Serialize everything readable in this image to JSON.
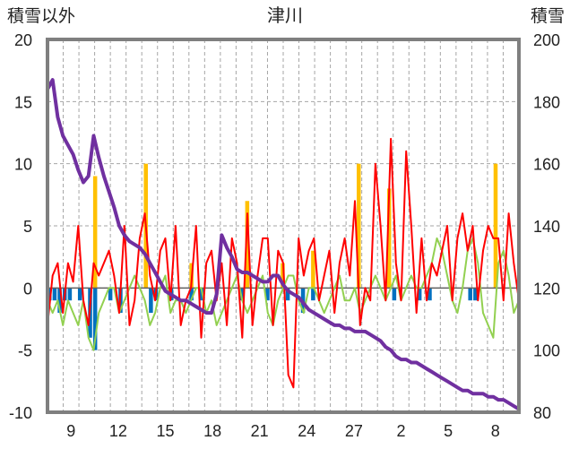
{
  "chart_data": {
    "type": "line",
    "title": "津川",
    "ylabel_left": "積雪以外",
    "ylabel_right": "積雪",
    "ylim_left": [
      -10,
      20
    ],
    "ylim_right": [
      80,
      200
    ],
    "yticks_left": [
      "20",
      "15",
      "10",
      "5",
      "0",
      "-5",
      "-10"
    ],
    "yticks_right": [
      "200",
      "180",
      "160",
      "140",
      "120",
      "100",
      "80"
    ],
    "xticks": [
      "9",
      "12",
      "15",
      "18",
      "21",
      "24",
      "27",
      "2",
      "5",
      "8"
    ],
    "grid": true,
    "x_days": 30,
    "series": [
      {
        "key": "max_temp",
        "axis": "left",
        "color": "#ff0000",
        "values": [
          -3,
          1,
          2,
          -2,
          2,
          0.5,
          5,
          -1,
          -3,
          2,
          1,
          2,
          3,
          1,
          -2,
          5,
          -3,
          -1,
          4,
          6,
          1,
          -1,
          3,
          4,
          -1,
          5,
          -3,
          -1,
          0,
          5,
          -4,
          2,
          3,
          -1,
          2,
          -3,
          4,
          2,
          -4,
          6,
          -3,
          1,
          4,
          4,
          -3,
          3,
          2,
          -7,
          -8,
          4,
          1,
          3,
          4,
          -1,
          1,
          3,
          -2,
          2,
          4,
          1,
          7,
          -3,
          0,
          -1,
          10,
          5,
          -1,
          12,
          2,
          -1,
          11,
          5,
          -2,
          4,
          -1,
          2,
          1,
          3,
          5,
          -1,
          4,
          6,
          3,
          5,
          -1,
          3,
          5,
          4,
          4,
          -1,
          6,
          2,
          -1
        ]
      },
      {
        "key": "min_temp",
        "axis": "left",
        "color": "#92d050",
        "values": [
          -1,
          -2,
          -1,
          -3,
          -1,
          -2,
          -3,
          -1,
          -4,
          -5,
          -2,
          -1,
          0,
          0,
          -2,
          -1,
          0,
          1,
          0,
          -1,
          -3,
          -2,
          0,
          1,
          -2,
          -1,
          -1,
          -2,
          -1,
          0,
          0,
          -2,
          -1,
          -3,
          -2,
          -1,
          0,
          1,
          -1,
          -2,
          -1,
          0,
          1,
          -2,
          -3,
          -1,
          0,
          1,
          1,
          -1,
          -2,
          0,
          0,
          -1,
          -2,
          -1,
          0,
          1,
          -1,
          -1,
          0,
          -2,
          -1,
          0,
          1,
          0,
          -1,
          0,
          1,
          -1,
          0,
          1,
          0,
          0,
          1,
          2,
          4,
          3,
          1,
          -1,
          -2,
          0,
          3,
          4,
          2,
          -2,
          -3,
          -4,
          2,
          3,
          1,
          -2,
          -1
        ]
      },
      {
        "key": "precipitation",
        "axis": "left",
        "color": "#ffc000",
        "values": [
          0,
          0,
          0,
          0,
          0,
          0,
          0,
          0,
          0,
          9,
          0,
          0,
          0,
          0,
          0,
          0,
          0,
          0,
          0,
          10,
          0,
          0,
          0,
          0,
          0,
          0,
          0,
          0,
          2,
          0,
          0,
          0,
          0,
          0,
          0,
          0,
          0,
          0,
          0,
          7,
          0,
          0,
          0,
          0,
          0,
          0,
          2,
          0,
          0,
          0,
          0,
          0,
          3,
          0,
          0,
          0,
          0,
          0,
          0,
          0,
          0,
          10,
          0,
          0,
          0,
          0,
          0,
          8,
          0,
          0,
          0,
          0,
          0,
          0,
          0,
          0,
          0,
          0,
          0,
          0,
          0,
          0,
          0,
          0,
          0,
          0,
          0,
          0,
          10,
          0,
          0,
          0,
          0
        ]
      },
      {
        "key": "snowfall",
        "axis": "left",
        "color": "#0070c0",
        "values": [
          -1,
          -1,
          -2,
          -1,
          -1,
          0,
          -1,
          0,
          -4,
          -5,
          0,
          0,
          -1,
          0,
          -2,
          0,
          0,
          0,
          0,
          0,
          -2,
          -1,
          0,
          0,
          -1,
          0,
          0,
          0,
          -1,
          0,
          -1,
          0,
          0,
          0,
          0,
          0,
          0,
          0,
          -1,
          0,
          0,
          0,
          0,
          -1,
          0,
          0,
          0,
          -1,
          0,
          0,
          -2,
          0,
          -1,
          0,
          0,
          0,
          0,
          0,
          0,
          0,
          0,
          0,
          0,
          0,
          0,
          0,
          0,
          0,
          -1,
          0,
          0,
          0,
          0,
          -1,
          0,
          -1,
          0,
          0,
          0,
          0,
          0,
          0,
          0,
          -1,
          -1,
          0,
          0,
          0,
          0,
          0,
          0,
          0,
          0
        ]
      },
      {
        "key": "snow_depth",
        "axis": "right",
        "color": "#7030a0",
        "values": [
          184,
          187,
          175,
          169,
          166,
          163,
          158,
          154,
          156,
          169,
          162,
          156,
          151,
          146,
          140,
          137,
          135,
          134,
          133,
          131,
          128,
          125,
          122,
          119,
          118,
          117,
          116,
          116,
          115,
          114,
          113,
          112,
          112,
          118,
          137,
          133,
          130,
          126,
          125,
          125,
          124,
          123,
          122,
          122,
          124,
          124,
          121,
          119,
          118,
          117,
          115,
          113,
          112,
          111,
          110,
          109,
          108,
          108,
          107,
          107,
          106,
          106,
          106,
          105,
          104,
          103,
          101,
          100,
          98,
          97,
          97,
          96,
          96,
          95,
          94,
          93,
          92,
          91,
          90,
          89,
          88,
          87,
          87,
          86,
          86,
          86,
          85,
          85,
          84,
          84,
          83,
          82,
          81
        ]
      }
    ]
  }
}
